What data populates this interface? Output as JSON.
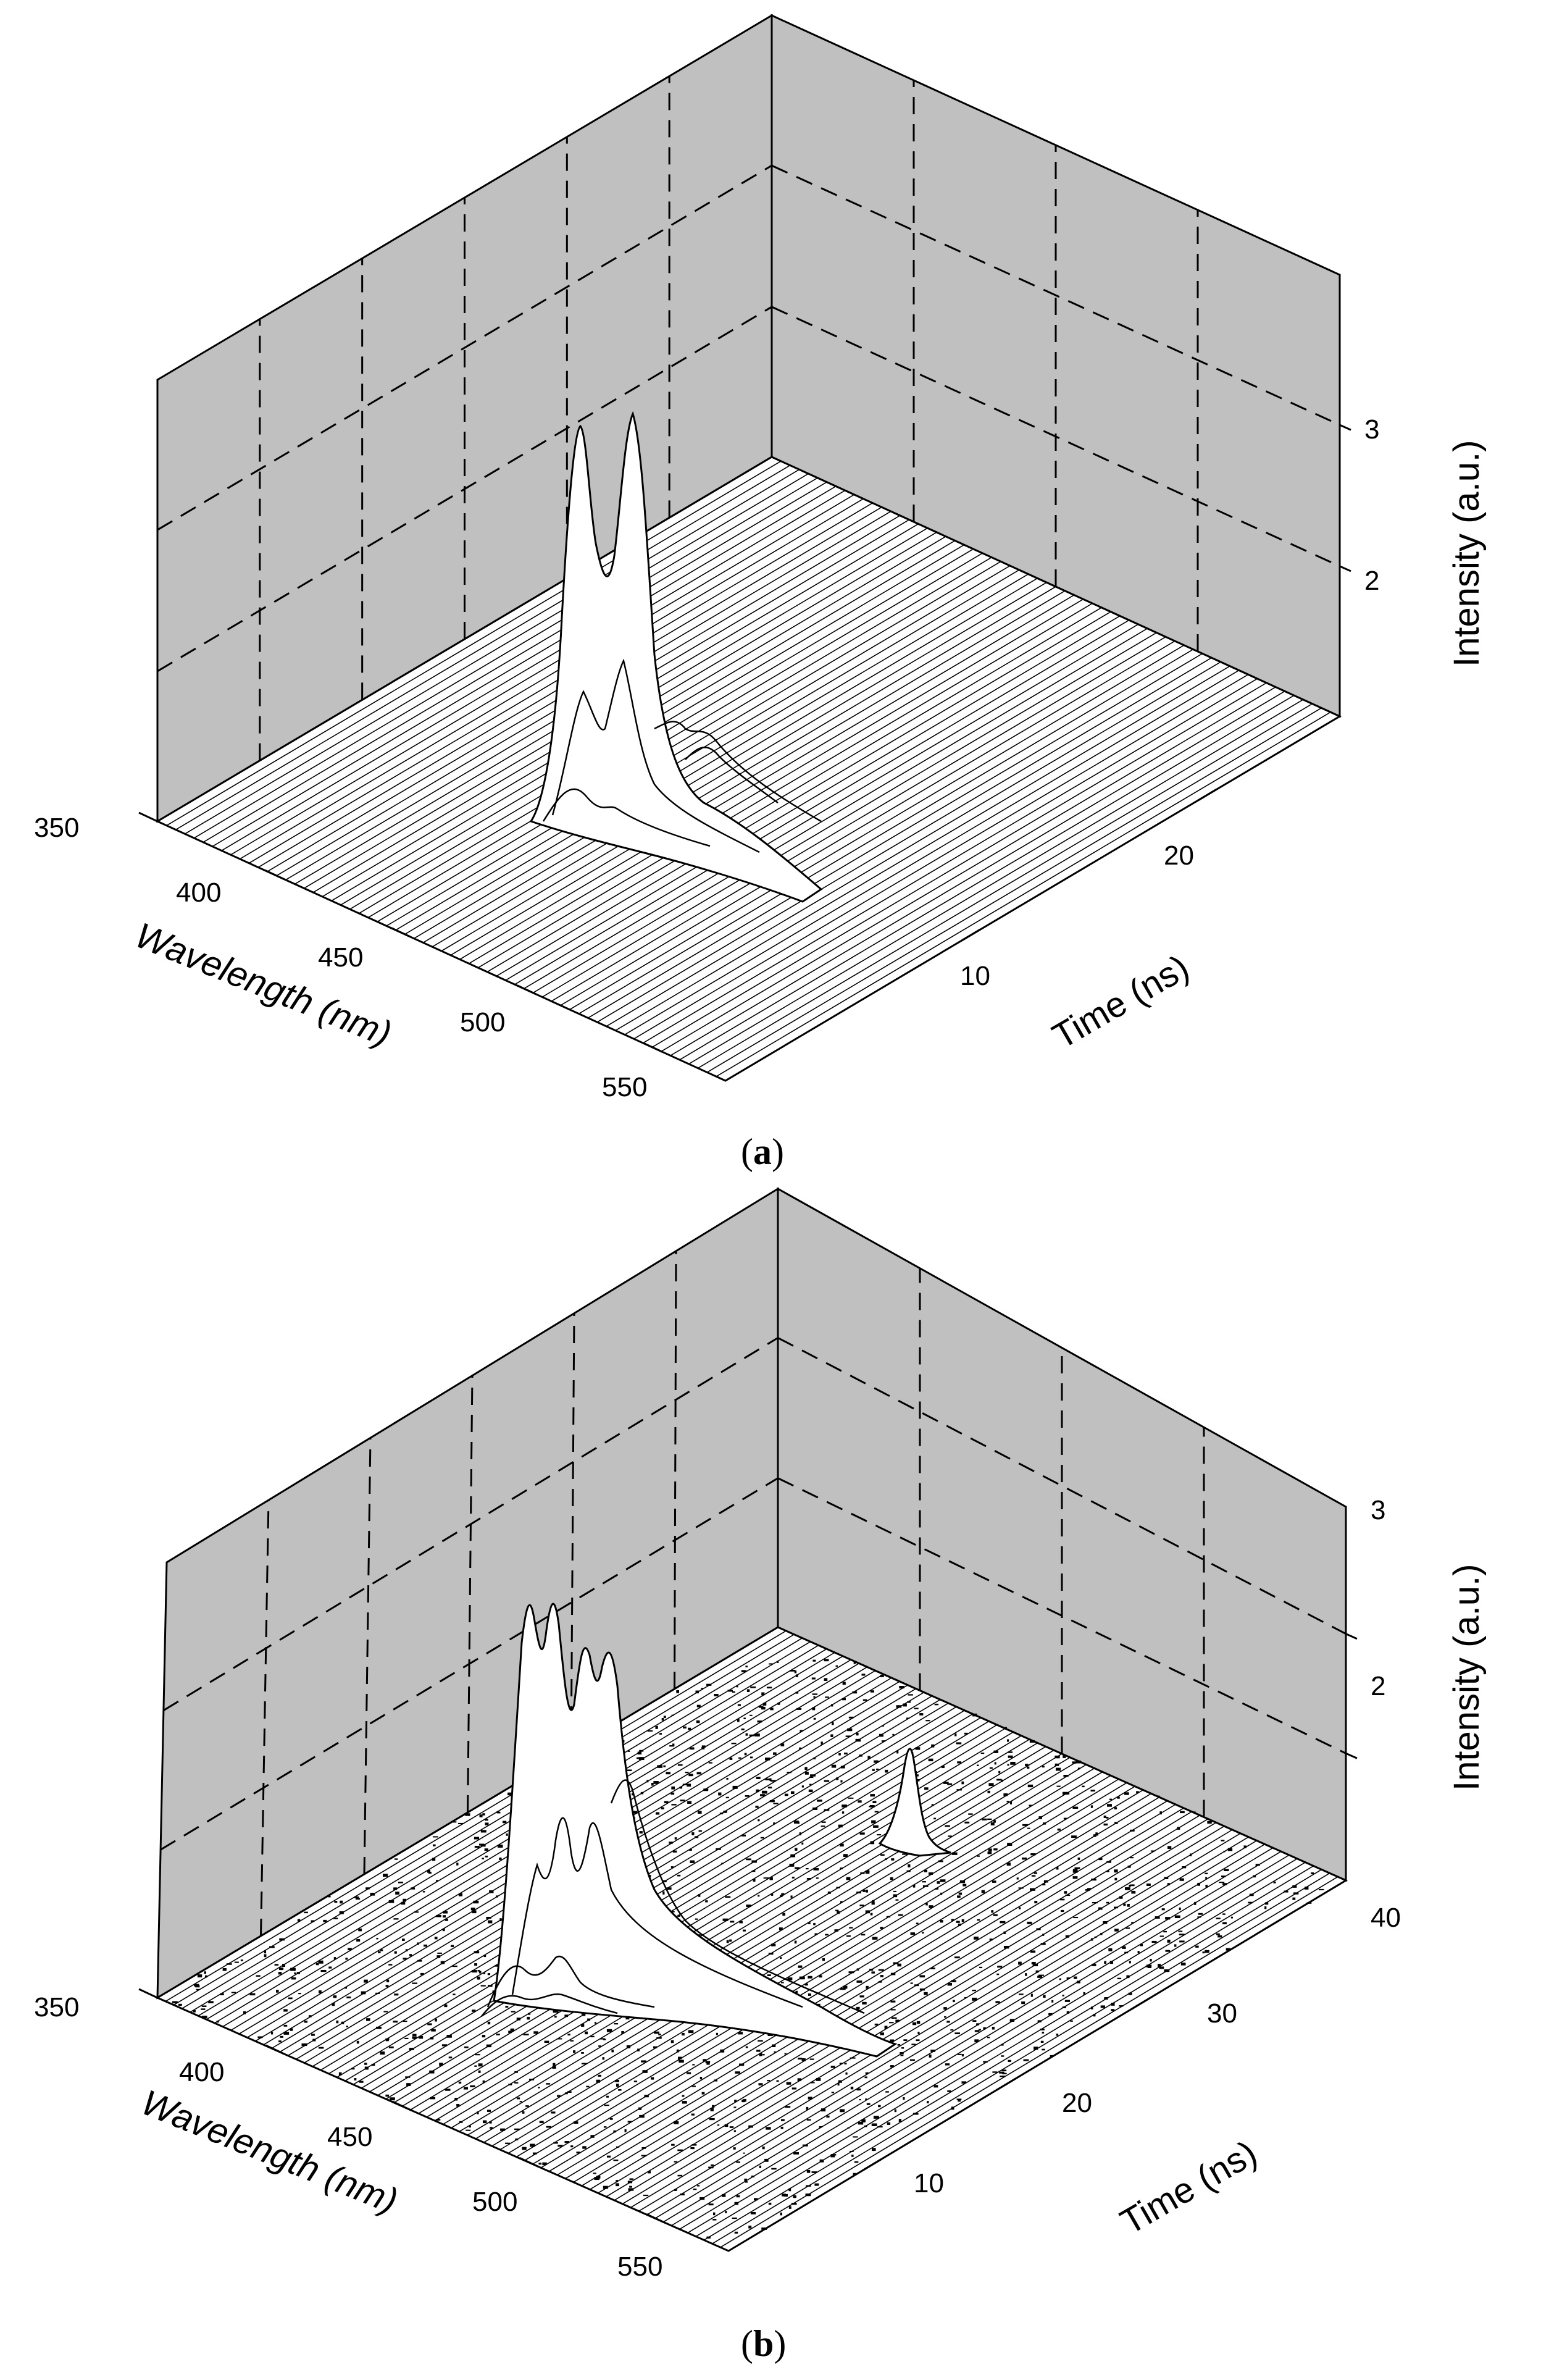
{
  "chart_data": [
    {
      "type": "surface",
      "panel_label": "a",
      "xlabel": "Wavelength (nm)",
      "ylabel": "Time (ns)",
      "zlabel": "Intensity (a.u.)",
      "x_ticks": [
        "350",
        "400",
        "450",
        "500",
        "550"
      ],
      "y_ticks": [
        "10",
        "20"
      ],
      "z_ticks": [
        "2",
        "3"
      ],
      "xlim": [
        350,
        575
      ],
      "ylim": [
        0,
        30
      ],
      "zlim": [
        1,
        3.8
      ],
      "grid": true,
      "background_color": "#c0c0c0",
      "peaks": [
        {
          "wavelength": 415,
          "time": 7,
          "intensity": 3.1
        },
        {
          "wavelength": 436,
          "time": 7,
          "intensity": 3.15
        }
      ]
    },
    {
      "type": "surface",
      "panel_label": "b",
      "xlabel": "Wavelength (nm)",
      "ylabel": "Time (ns)",
      "zlabel": "Intensity (a.u.)",
      "x_ticks": [
        "350",
        "400",
        "450",
        "500",
        "550"
      ],
      "y_ticks": [
        "10",
        "20",
        "30",
        "40"
      ],
      "z_ticks": [
        "2",
        "3"
      ],
      "xlim": [
        350,
        575
      ],
      "ylim": [
        0,
        40
      ],
      "zlim": [
        1,
        3
      ],
      "grid": true,
      "background_color": "#c0c0c0",
      "peaks": [
        {
          "wavelength": 410,
          "time": 8,
          "intensity": 2.6
        },
        {
          "wavelength": 432,
          "time": 8,
          "intensity": 2.65
        },
        {
          "wavelength": 460,
          "time": 36,
          "intensity": 1.9
        }
      ]
    }
  ],
  "captions": {
    "a": {
      "open": "(",
      "letter": "a",
      "close": ")"
    },
    "b": {
      "open": "(",
      "letter": "b",
      "close": ")"
    }
  }
}
